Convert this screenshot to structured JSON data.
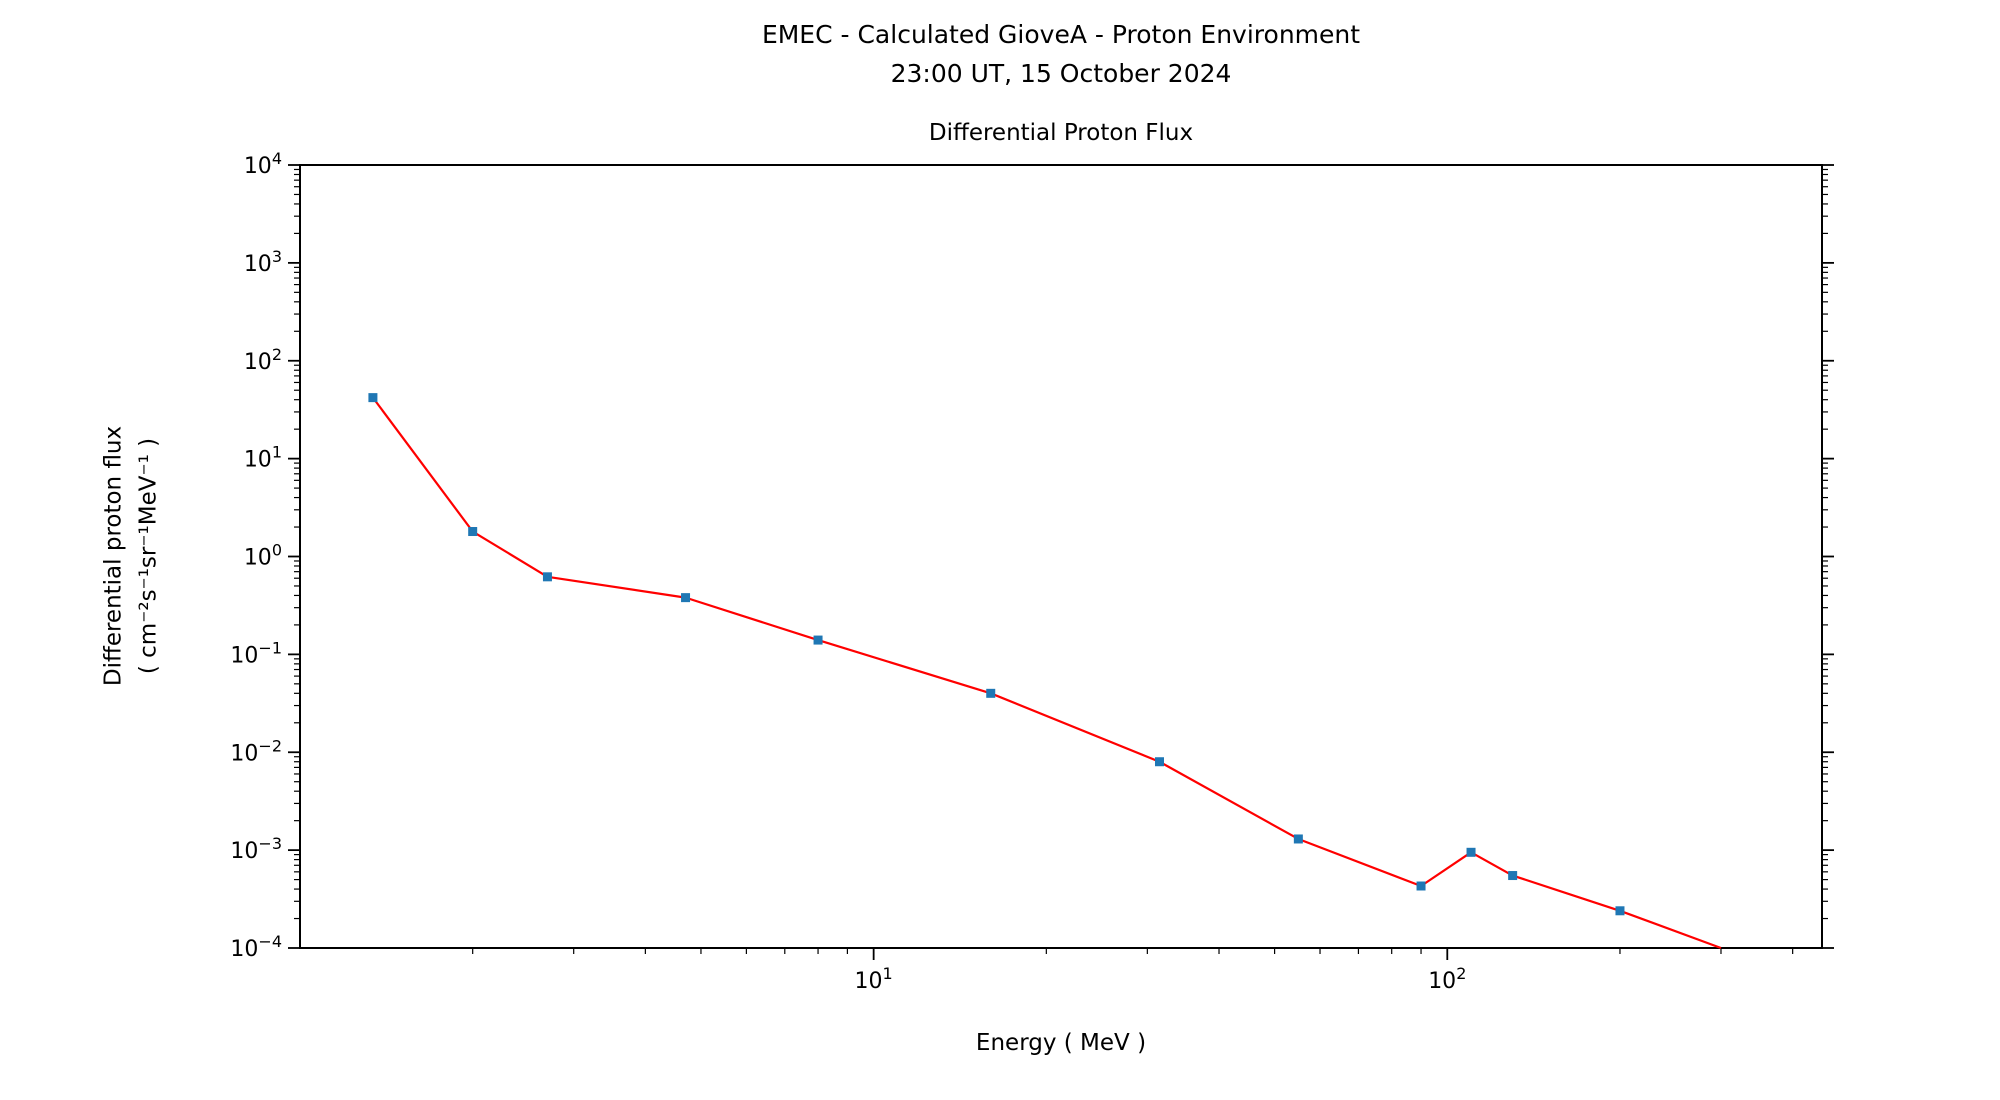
{
  "chart_data": {
    "type": "line",
    "title": "EMEC - Calculated GioveA - Proton Environment",
    "subtitle": "23:00 UT, 15 October 2024",
    "plot_title": "Differential Proton Flux",
    "xlabel": "Energy ( MeV )",
    "ylabel_line1": "Differential proton flux",
    "ylabel_line2": "( cm⁻²s⁻¹sr⁻¹MeV⁻¹ )",
    "x_scale": "log",
    "y_scale": "log",
    "xlim": [
      1.0,
      450
    ],
    "ylim": [
      0.0001,
      10000
    ],
    "x_tick_exponents": [
      1,
      2
    ],
    "y_tick_exponents": [
      4,
      3,
      2,
      1,
      0,
      -1,
      -2,
      -3,
      -4
    ],
    "grid": false,
    "legend": false,
    "line_color": "#ff0000",
    "marker_color": "#1f77b4",
    "frame_color": "#000000",
    "series": [
      {
        "name": "Differential Proton Flux",
        "x": [
          1.34,
          2.0,
          2.7,
          4.7,
          8.0,
          16,
          31.5,
          55,
          90,
          110,
          130,
          200,
          300
        ],
        "y": [
          42,
          1.8,
          0.62,
          0.38,
          0.14,
          0.04,
          0.008,
          0.0013,
          0.00043,
          0.00095,
          0.00055,
          0.00024,
          0.0001
        ],
        "marker_points": 12
      }
    ]
  }
}
